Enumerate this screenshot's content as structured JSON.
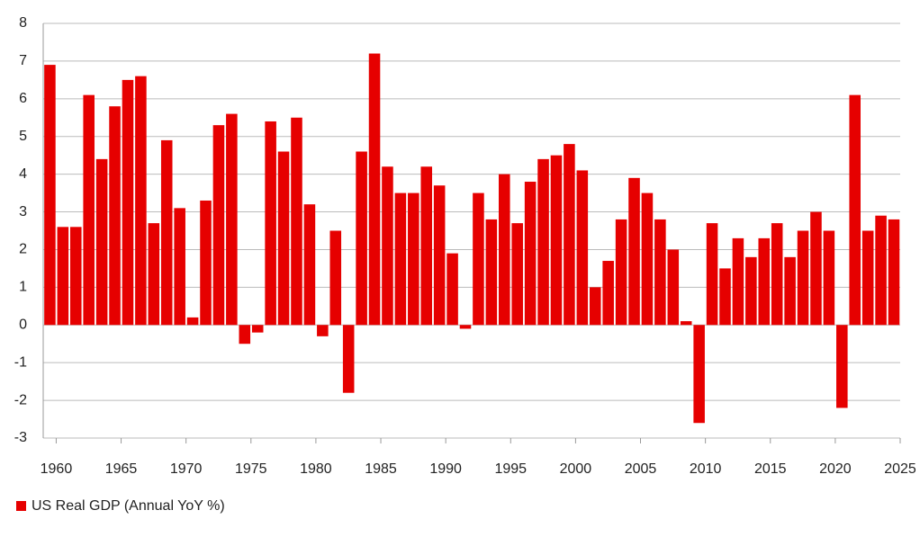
{
  "chart_data": {
    "type": "bar",
    "x": [
      1959,
      1960,
      1961,
      1962,
      1963,
      1964,
      1965,
      1966,
      1967,
      1968,
      1969,
      1970,
      1971,
      1972,
      1973,
      1974,
      1975,
      1976,
      1977,
      1978,
      1979,
      1980,
      1981,
      1982,
      1983,
      1984,
      1985,
      1986,
      1987,
      1988,
      1989,
      1990,
      1991,
      1992,
      1993,
      1994,
      1995,
      1996,
      1997,
      1998,
      1999,
      2000,
      2001,
      2002,
      2003,
      2004,
      2005,
      2006,
      2007,
      2008,
      2009,
      2010,
      2011,
      2012,
      2013,
      2014,
      2015,
      2016,
      2017,
      2018,
      2019,
      2020,
      2021,
      2022,
      2023,
      2024
    ],
    "series": [
      {
        "name": "US Real GDP (Annual YoY %)",
        "color": "#e60000",
        "values": [
          6.9,
          2.6,
          2.6,
          6.1,
          4.4,
          5.8,
          6.5,
          6.6,
          2.7,
          4.9,
          3.1,
          0.2,
          3.3,
          5.3,
          5.6,
          -0.5,
          -0.2,
          5.4,
          4.6,
          5.5,
          3.2,
          -0.3,
          2.5,
          -1.8,
          4.6,
          7.2,
          4.2,
          3.5,
          3.5,
          4.2,
          3.7,
          1.9,
          -0.1,
          3.5,
          2.8,
          4.0,
          2.7,
          3.8,
          4.4,
          4.5,
          4.8,
          4.1,
          1.0,
          1.7,
          2.8,
          3.9,
          3.5,
          2.8,
          2.0,
          0.1,
          -2.6,
          2.7,
          1.5,
          2.3,
          1.8,
          2.3,
          2.7,
          1.8,
          2.5,
          3.0,
          2.5,
          -2.2,
          6.1,
          2.5,
          2.9,
          2.8
        ]
      }
    ],
    "xlim": [
      1959,
      2025
    ],
    "xticks": [
      1960,
      1965,
      1970,
      1975,
      1980,
      1985,
      1990,
      1995,
      2000,
      2005,
      2010,
      2015,
      2020,
      2025
    ],
    "ylim": [
      -3,
      8
    ],
    "yticks": [
      -3,
      -2,
      -1,
      0,
      1,
      2,
      3,
      4,
      5,
      6,
      7,
      8
    ],
    "grid": true,
    "legend": "bottom-left"
  }
}
